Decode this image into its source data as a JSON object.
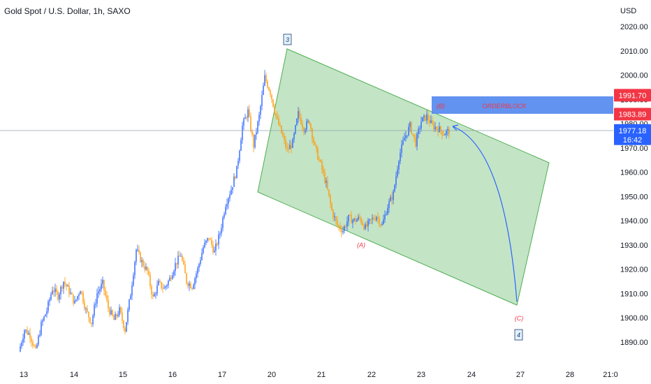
{
  "header": {
    "title": "Gold Spot / U.S. Dollar, 1h, SAXO"
  },
  "axis": {
    "currency_label": "USD"
  },
  "price_tags": [
    {
      "label": "1991.70",
      "value": 1991.7,
      "color": "#f23645"
    },
    {
      "label": "1983.89",
      "value": 1983.89,
      "color": "#f23645"
    },
    {
      "label": "1977.18",
      "sub": "16:42",
      "value": 1977.18,
      "color": "#2962ff"
    }
  ],
  "annotations": {
    "wave3": "3",
    "waveA": "(A)",
    "waveB": "(B)",
    "waveC": "(C)",
    "wave4": "4",
    "orderblock": "ORDERBLOCK"
  },
  "colors": {
    "up": "#2962ff",
    "down": "#ff9800",
    "channel_fill": "#a5d6a7",
    "channel_stroke": "#4caf50",
    "orderblock": "#5b8def",
    "arrow": "#2962ff"
  },
  "chart_data": {
    "type": "candlestick",
    "title": "Gold Spot / U.S. Dollar, 1h, SAXO",
    "ylabel": "USD",
    "ylim": [
      1885,
      2023
    ],
    "y_ticks": [
      "2020.00",
      "2010.00",
      "2000.00",
      "1990.00",
      "1980.00",
      "1970.00",
      "1960.00",
      "1950.00",
      "1940.00",
      "1930.00",
      "1920.00",
      "1910.00",
      "1900.00",
      "1890.00"
    ],
    "x_ticks": [
      "13",
      "14",
      "15",
      "16",
      "17",
      "20",
      "21",
      "22",
      "23",
      "24",
      "27",
      "28",
      "21:0"
    ],
    "current_price": 1977.18,
    "series": [
      {
        "name": "",
        "close_path": [
          [
            0,
            1886
          ],
          [
            1,
            1895
          ],
          [
            2,
            1893
          ],
          [
            3,
            1886
          ],
          [
            4,
            1897
          ],
          [
            5,
            1903
          ],
          [
            6,
            1912
          ],
          [
            7,
            1909
          ],
          [
            8,
            1915
          ],
          [
            9,
            1911
          ],
          [
            10,
            1906
          ],
          [
            11,
            1912
          ],
          [
            12,
            1903
          ],
          [
            13,
            1898
          ],
          [
            14,
            1910
          ],
          [
            15,
            1914
          ],
          [
            16,
            1904
          ],
          [
            17,
            1899
          ],
          [
            18,
            1903
          ],
          [
            19,
            1895
          ],
          [
            20,
            1910
          ],
          [
            21,
            1928
          ],
          [
            22,
            1923
          ],
          [
            23,
            1919
          ],
          [
            24,
            1908
          ],
          [
            25,
            1914
          ],
          [
            26,
            1912
          ],
          [
            27,
            1916
          ],
          [
            28,
            1922
          ],
          [
            29,
            1926
          ],
          [
            30,
            1915
          ],
          [
            31,
            1913
          ],
          [
            32,
            1920
          ],
          [
            33,
            1929
          ],
          [
            34,
            1933
          ],
          [
            35,
            1927
          ],
          [
            36,
            1935
          ],
          [
            37,
            1947
          ],
          [
            38,
            1953
          ],
          [
            39,
            1961
          ],
          [
            40,
            1979
          ],
          [
            41,
            1985
          ],
          [
            42,
            1971
          ],
          [
            43,
            1983
          ],
          [
            44,
            1999
          ],
          [
            45,
            1993
          ],
          [
            46,
            1983
          ],
          [
            47,
            1976
          ],
          [
            48,
            1969
          ],
          [
            49,
            1972
          ],
          [
            50,
            1984
          ],
          [
            51,
            1978
          ],
          [
            52,
            1981
          ],
          [
            53,
            1970
          ],
          [
            54,
            1963
          ],
          [
            55,
            1955
          ],
          [
            56,
            1944
          ],
          [
            57,
            1938
          ],
          [
            58,
            1936
          ],
          [
            59,
            1941
          ],
          [
            60,
            1940
          ],
          [
            61,
            1941
          ],
          [
            62,
            1937
          ],
          [
            63,
            1940
          ],
          [
            64,
            1942
          ],
          [
            65,
            1938
          ],
          [
            66,
            1946
          ],
          [
            67,
            1951
          ],
          [
            68,
            1966
          ],
          [
            69,
            1974
          ],
          [
            70,
            1979
          ],
          [
            71,
            1972
          ],
          [
            72,
            1981
          ],
          [
            73,
            1983
          ],
          [
            74,
            1979
          ],
          [
            75,
            1978
          ],
          [
            76,
            1976
          ],
          [
            77,
            1977
          ]
        ]
      }
    ],
    "annotations": [
      "3",
      "(A)",
      "(B)",
      "(C)",
      "4",
      "ORDERBLOCK"
    ],
    "orderblock_range": [
      1983.89,
      1991.7
    ],
    "channel_corners_time_price": [
      [
        "20",
        2011
      ],
      [
        "28",
        1964
      ],
      [
        "27",
        1905
      ],
      [
        "19.9",
        1953
      ]
    ],
    "projection": {
      "from": [
        "24",
        1977
      ],
      "to": [
        "27",
        1910
      ]
    }
  }
}
